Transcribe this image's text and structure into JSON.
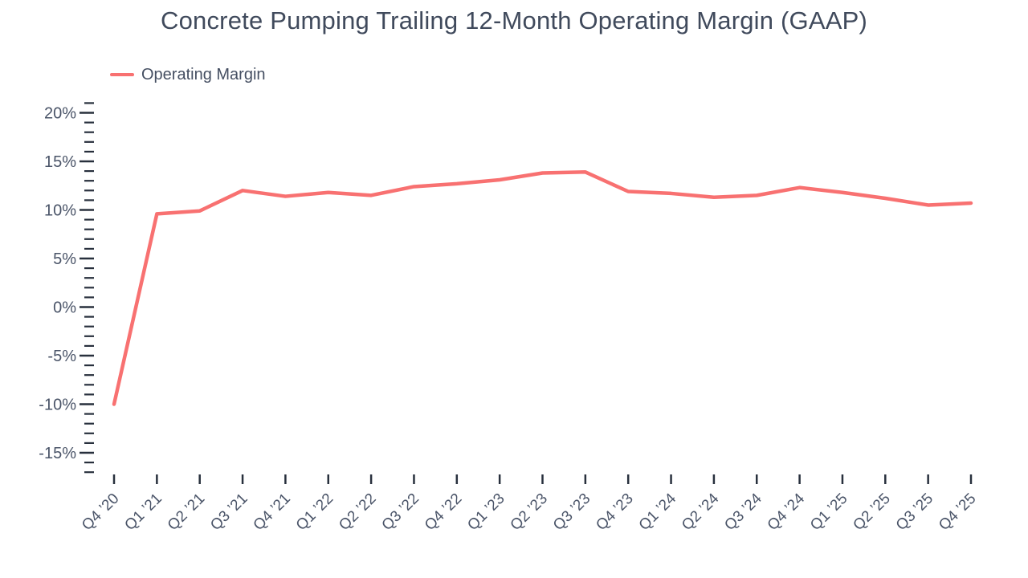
{
  "chart_data": {
    "type": "line",
    "title": "Concrete Pumping Trailing 12-Month Operating Margin (GAAP)",
    "legend_position": "top-left",
    "legend": [
      {
        "label": "Operating Margin",
        "color": "#f87171"
      }
    ],
    "categories": [
      "Q4 ’20",
      "Q1 ’21",
      "Q2 ’21",
      "Q3 ’21",
      "Q4 ’21",
      "Q1 ’22",
      "Q2 ’22",
      "Q3 ’22",
      "Q4 ’22",
      "Q1 ’23",
      "Q2 ’23",
      "Q3 ’23",
      "Q4 ’23",
      "Q1 ’24",
      "Q2 ’24",
      "Q3 ’24",
      "Q4 ’24",
      "Q1 ’25",
      "Q2 ’25",
      "Q3 ’25",
      "Q4 ’25"
    ],
    "series": [
      {
        "name": "Operating Margin",
        "values": [
          -10.0,
          9.6,
          9.9,
          12.0,
          11.4,
          11.8,
          11.5,
          12.4,
          12.7,
          13.1,
          13.8,
          13.9,
          11.9,
          11.7,
          11.3,
          11.5,
          12.3,
          11.8,
          11.2,
          10.5,
          10.7
        ]
      }
    ],
    "xlabel": "",
    "ylabel": "",
    "unit": "%",
    "ylim": [
      -17,
      21
    ],
    "y_major_ticks": [
      20,
      15,
      10,
      5,
      0,
      -5,
      -10,
      -15
    ],
    "y_major_tick_labels": [
      "20%",
      "15%",
      "10%",
      "5%",
      "0%",
      "-5%",
      "-10%",
      "-15%"
    ],
    "y_minor_tick_step": 1,
    "grid": false,
    "colors": {
      "line": "#f87171",
      "title_text": "#404a5c",
      "axis_text": "#4a5468",
      "tick_mark": "#28303d"
    }
  }
}
